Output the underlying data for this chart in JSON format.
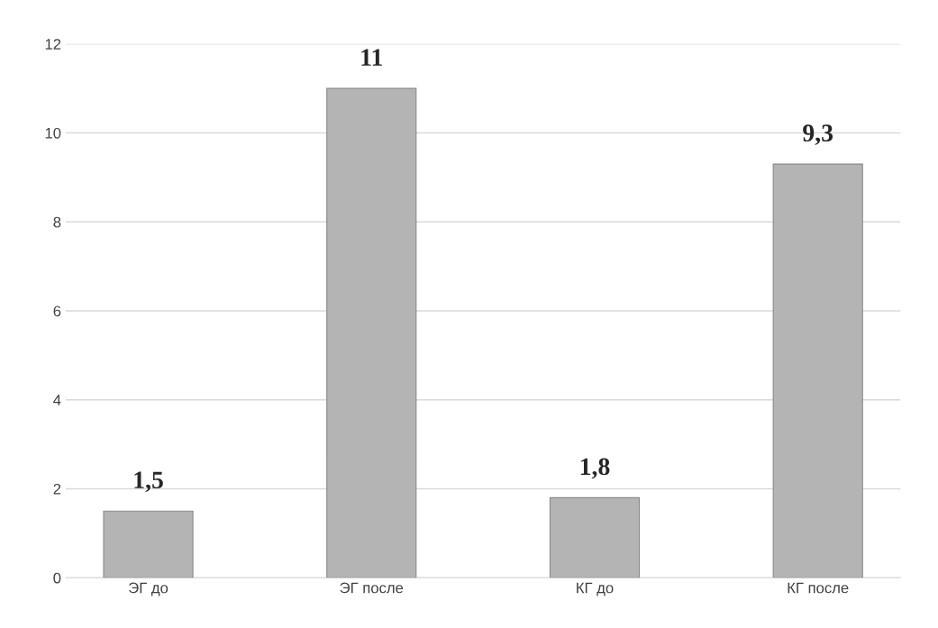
{
  "chart_data": {
    "type": "bar",
    "categories": [
      "ЭГ до",
      "ЭГ после",
      "КГ до",
      "КГ после"
    ],
    "values": [
      1.5,
      11,
      1.8,
      9.3
    ],
    "value_labels": [
      "1,5",
      "11",
      "1,8",
      "9,3"
    ],
    "color": "#b4b4b4",
    "ylim": [
      0,
      12
    ],
    "yticks": [
      0,
      2,
      4,
      6,
      8,
      10,
      12
    ],
    "grid": "y"
  }
}
